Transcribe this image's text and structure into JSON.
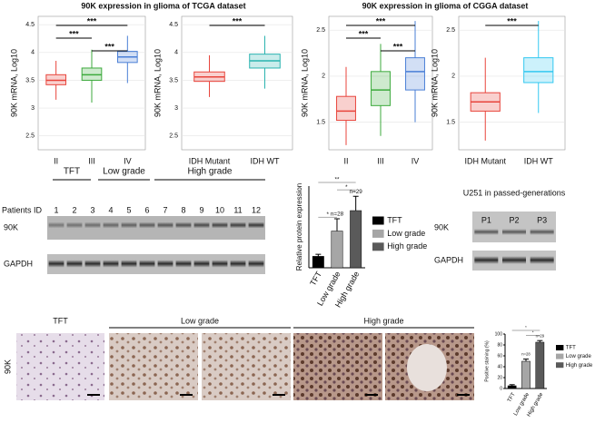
{
  "chart_data": [
    {
      "type": "box",
      "title": "90K expression in glioma of TCGA dataset",
      "ylabel": "90K mRNA, Log10",
      "categories": [
        "II",
        "III",
        "IV"
      ],
      "colors": [
        "#e8453c",
        "#3caa3c",
        "#4a7fd6"
      ],
      "boxes": [
        {
          "min": 3.15,
          "q1": 3.42,
          "median": 3.5,
          "q3": 3.6,
          "max": 3.85
        },
        {
          "min": 3.1,
          "q1": 3.5,
          "median": 3.6,
          "q3": 3.72,
          "max": 4.05
        },
        {
          "min": 3.45,
          "q1": 3.82,
          "median": 3.92,
          "q3": 4.02,
          "max": 4.3
        }
      ],
      "ylim": [
        2.25,
        4.65
      ],
      "yticks": [
        2.5,
        3.0,
        3.5,
        4.0,
        4.5
      ],
      "significance": [
        "***",
        "***",
        "***"
      ]
    },
    {
      "type": "box",
      "ylabel": "90K mRNA, Log10",
      "categories": [
        "IDH Mutant",
        "IDH WT"
      ],
      "colors": [
        "#e8453c",
        "#2bb3b0"
      ],
      "boxes": [
        {
          "min": 3.2,
          "q1": 3.48,
          "median": 3.56,
          "q3": 3.65,
          "max": 3.95
        },
        {
          "min": 3.35,
          "q1": 3.72,
          "median": 3.85,
          "q3": 3.97,
          "max": 4.3
        }
      ],
      "ylim": [
        2.25,
        4.65
      ],
      "yticks": [
        2.5,
        3.0,
        3.5,
        4.0,
        4.5
      ],
      "significance": [
        "***"
      ]
    },
    {
      "type": "box",
      "title": "90K expression in glioma of CGGA dataset",
      "ylabel": "90K mRNA, Log10",
      "categories": [
        "II",
        "III",
        "IV"
      ],
      "colors": [
        "#e8453c",
        "#3caa3c",
        "#4a7fd6"
      ],
      "boxes": [
        {
          "min": 1.25,
          "q1": 1.52,
          "median": 1.62,
          "q3": 1.78,
          "max": 2.1
        },
        {
          "min": 1.35,
          "q1": 1.68,
          "median": 1.85,
          "q3": 2.05,
          "max": 2.35
        },
        {
          "min": 1.5,
          "q1": 1.85,
          "median": 2.05,
          "q3": 2.2,
          "max": 2.6
        }
      ],
      "ylim": [
        1.2,
        2.65
      ],
      "yticks": [
        1.5,
        2.0,
        2.5
      ],
      "significance": [
        "***",
        "***",
        "***"
      ]
    },
    {
      "type": "box",
      "ylabel": "90K mRNA, Log10",
      "categories": [
        "IDH Mutant",
        "IDH WT"
      ],
      "colors": [
        "#e8453c",
        "#33c8f0"
      ],
      "boxes": [
        {
          "min": 1.3,
          "q1": 1.62,
          "median": 1.72,
          "q3": 1.82,
          "max": 2.2
        },
        {
          "min": 1.6,
          "q1": 1.93,
          "median": 2.05,
          "q3": 2.2,
          "max": 2.6
        }
      ],
      "ylim": [
        1.2,
        2.65
      ],
      "yticks": [
        1.5,
        2.0,
        2.5
      ],
      "significance": [
        "***"
      ]
    },
    {
      "type": "bar",
      "ylabel": "Relative protein expression",
      "categories": [
        "TFT",
        "Low grade",
        "High grade"
      ],
      "colors": [
        "#000000",
        "#a6a6a6",
        "#5a5a5a"
      ],
      "values": [
        0.28,
        0.9,
        1.4
      ],
      "errors": [
        0.05,
        0.3,
        0.35
      ],
      "ylim": [
        0,
        2.0
      ],
      "annotations": [
        "n=28",
        "n=29"
      ],
      "significance": [
        "**",
        "*",
        "*"
      ]
    },
    {
      "type": "bar",
      "ylabel": "Positive staining (%)",
      "categories": [
        "TFT",
        "Low grade",
        "High grade"
      ],
      "colors": [
        "#000000",
        "#a6a6a6",
        "#5a5a5a"
      ],
      "values": [
        5,
        50,
        85
      ],
      "errors": [
        2,
        4,
        3
      ],
      "ylim": [
        0,
        100
      ],
      "yticks": [
        0,
        20,
        40,
        60,
        80,
        100
      ],
      "annotations": [
        "n=28",
        "n=29"
      ],
      "significance": [
        "*",
        "*"
      ]
    }
  ],
  "blot_patients": {
    "groups": [
      "TFT",
      "Low grade",
      "High grade"
    ],
    "row_header": "Patients ID",
    "lanes": [
      "1",
      "2",
      "3",
      "4",
      "5",
      "6",
      "7",
      "8",
      "9",
      "10",
      "11",
      "12"
    ],
    "rows": [
      "90K",
      "GAPDH"
    ]
  },
  "blot_cells": {
    "title": "U251 in passed-generations",
    "lanes": [
      "P1",
      "P2",
      "P3"
    ],
    "rows": [
      "90K",
      "GAPDH"
    ]
  },
  "histology": {
    "groups": [
      "TFT",
      "Low grade",
      "High grade"
    ],
    "row": "90K"
  }
}
